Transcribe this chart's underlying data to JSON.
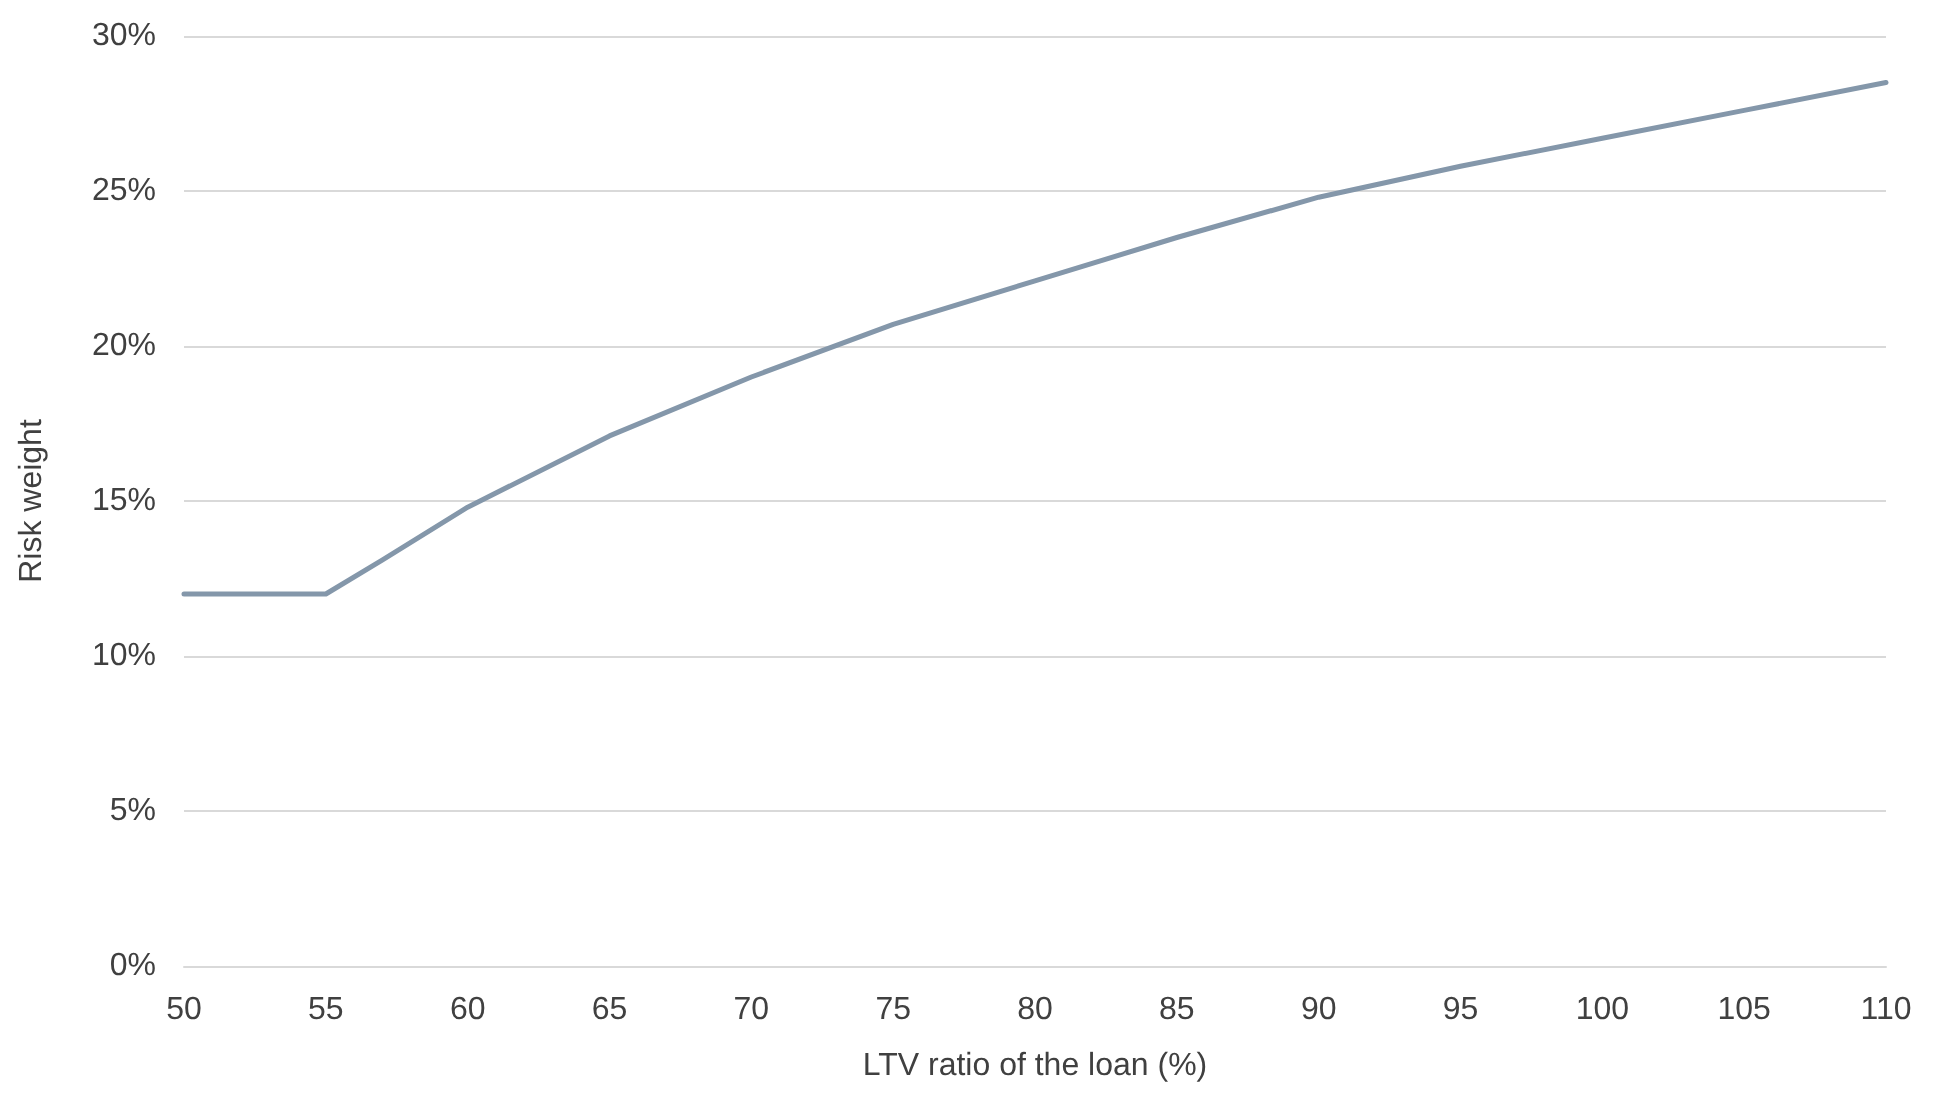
{
  "chart_data": {
    "type": "line",
    "xlabel": "LTV ratio of the loan (%)",
    "ylabel": "Risk weight",
    "x": [
      50,
      55,
      57,
      60,
      65,
      70,
      75,
      80,
      85,
      90,
      95,
      100,
      105,
      110
    ],
    "series": [
      {
        "color": "#8497aa",
        "values": [
          12,
          12,
          13.1,
          14.8,
          17.1,
          19,
          20.7,
          22.1,
          23.5,
          24.8,
          25.8,
          26.7,
          27.6,
          28.5
        ]
      }
    ],
    "xlim": [
      50,
      110
    ],
    "xticks": [
      50,
      55,
      60,
      65,
      70,
      75,
      80,
      85,
      90,
      95,
      100,
      105,
      110
    ],
    "ylim": [
      0,
      30
    ],
    "yticks": [
      {
        "value": 0,
        "label": "0%"
      },
      {
        "value": 5,
        "label": "5%"
      },
      {
        "value": 10,
        "label": "10%"
      },
      {
        "value": 15,
        "label": "15%"
      },
      {
        "value": 20,
        "label": "20%"
      },
      {
        "value": 25,
        "label": "25%"
      },
      {
        "value": 30,
        "label": "30%"
      }
    ],
    "grid": "y",
    "marker": "none",
    "line_style": "solid"
  }
}
